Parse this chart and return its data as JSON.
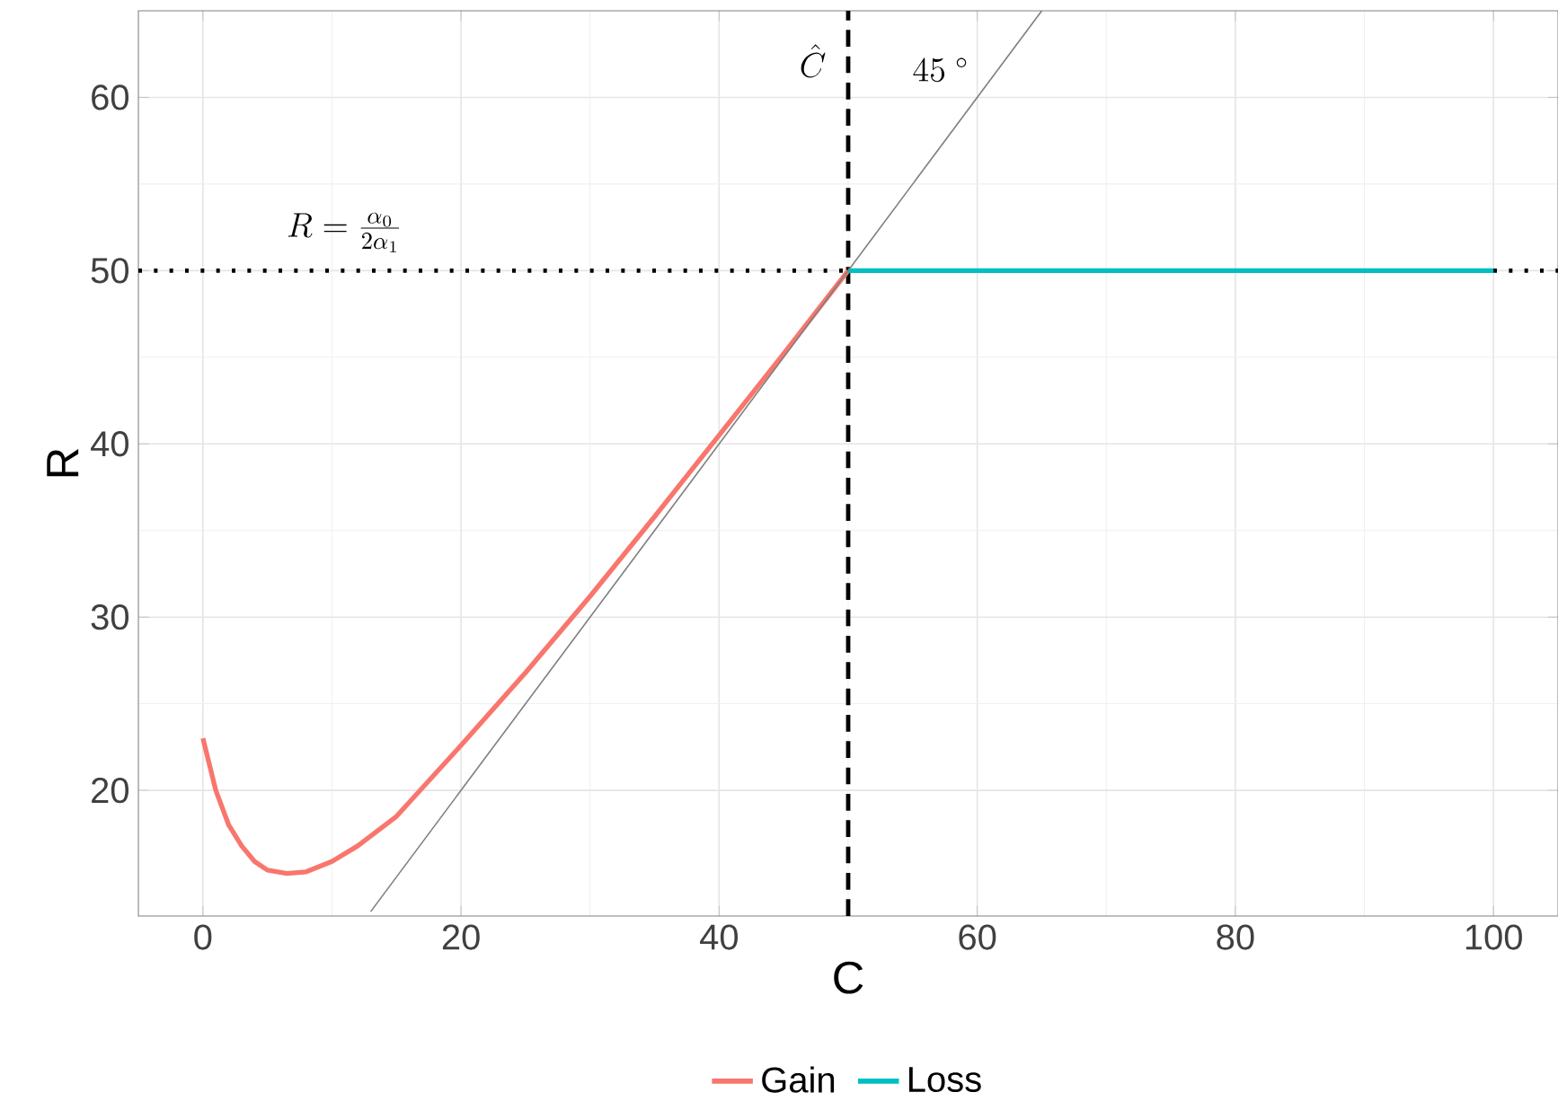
{
  "chart_data": {
    "type": "line",
    "xlabel": "C",
    "ylabel": "R",
    "xlim": [
      -5,
      105
    ],
    "ylim": [
      12.75,
      65
    ],
    "xticks": [
      0,
      20,
      40,
      60,
      80,
      100
    ],
    "yticks": [
      20,
      30,
      40,
      50,
      60
    ],
    "grid": true,
    "legend": "bottom",
    "line_style": "solid",
    "marker": "none",
    "series": [
      {
        "name": "Gain",
        "color": "#f8766d",
        "x": [
          0,
          1,
          2,
          3,
          4,
          5,
          6.5,
          8,
          10,
          12,
          15,
          20,
          25,
          30,
          35,
          40,
          45,
          50
        ],
        "values": [
          23,
          20,
          18,
          16.8,
          15.9,
          15.4,
          15.2,
          15.3,
          15.9,
          16.8,
          18.5,
          22.6,
          26.8,
          31.2,
          35.8,
          40.5,
          45.2,
          50
        ]
      },
      {
        "name": "Loss",
        "color": "#00bfc4",
        "x": [
          50,
          100
        ],
        "values": [
          50,
          50
        ]
      },
      {
        "color": "#7f7f7f",
        "x": [
          13,
          65
        ],
        "values": [
          13,
          65
        ]
      }
    ],
    "ref_lines": [
      {
        "axis": "x",
        "value": 50,
        "color": "#000000",
        "line_style": "dashed"
      },
      {
        "axis": "y",
        "value": 50,
        "color": "#000000",
        "line_style": "dotted"
      }
    ],
    "annotations": [
      "\\hat{C}",
      "45\\ ^{\\circ}",
      "R=\\frac{\\alpha_0}{2\\alpha_1}"
    ]
  }
}
